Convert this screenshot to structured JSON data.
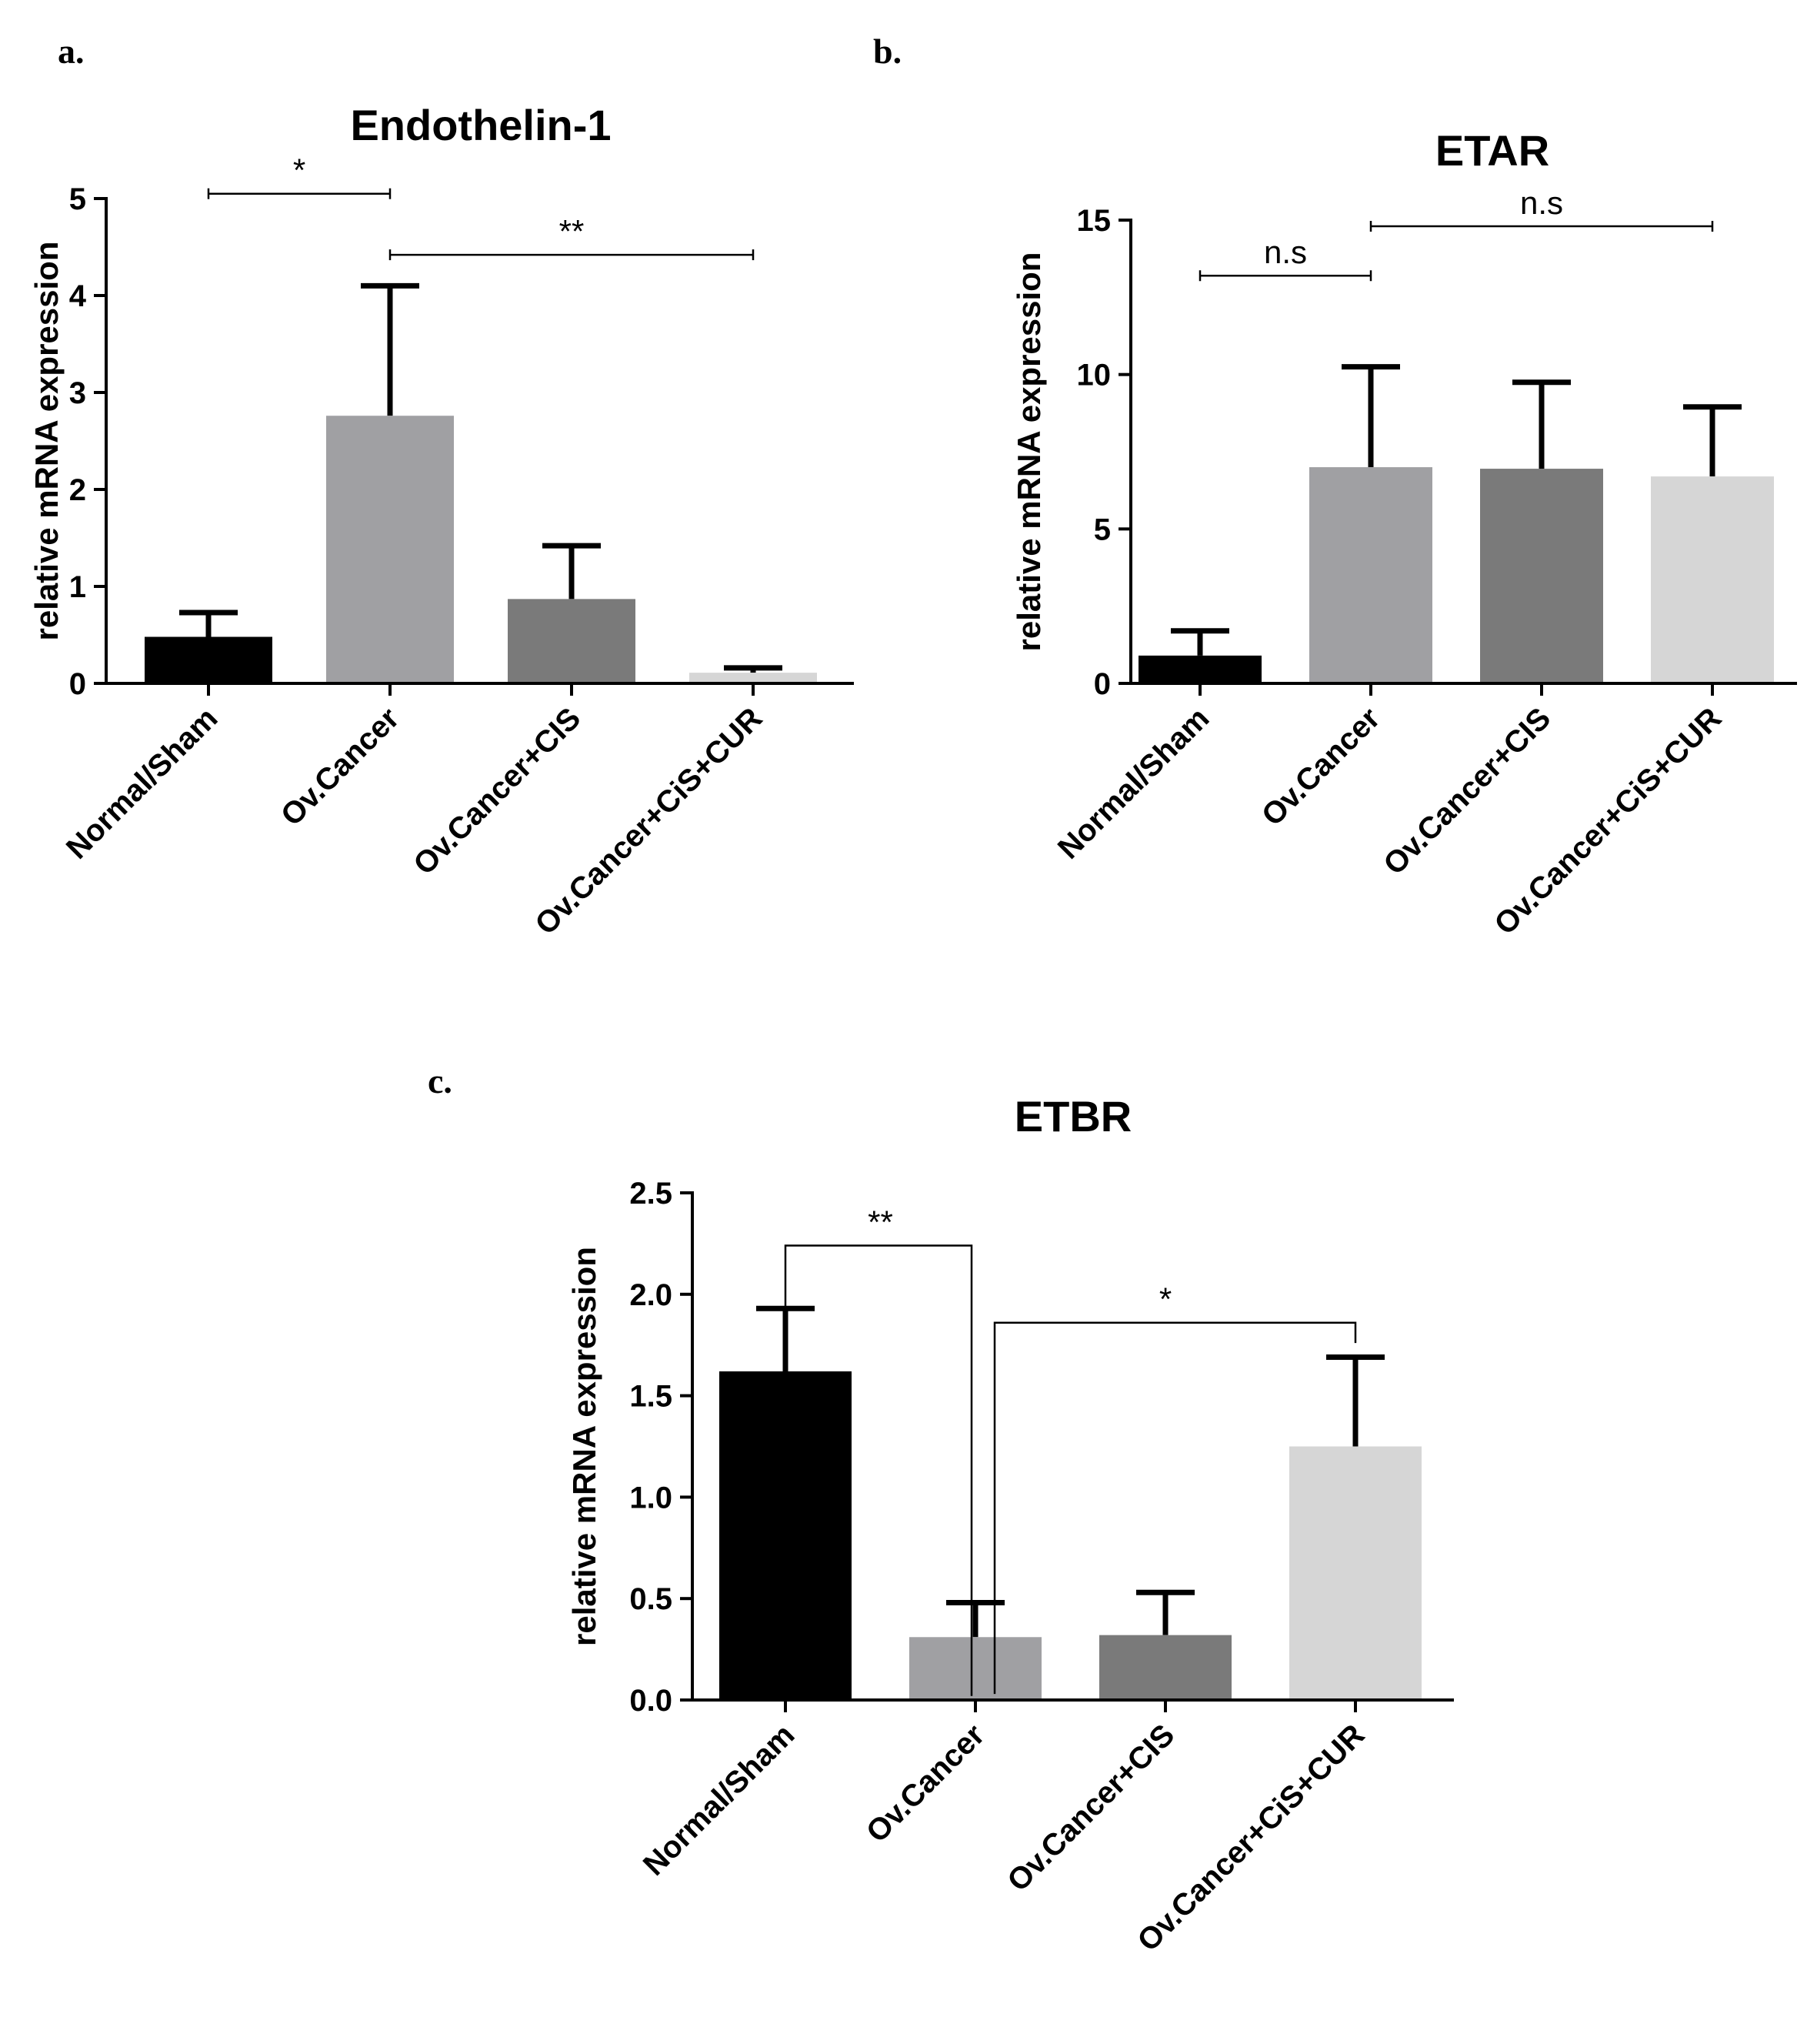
{
  "chart_data": [
    {
      "panel": "a.",
      "type": "bar",
      "title": "Endothelin-1",
      "xlabel": "",
      "ylabel": "relative mRNA expression",
      "categories": [
        "Normal/Sham",
        "Ov.Cancer",
        "Ov.Cancer+CIS",
        "Ov.Cancer+CiS+CUR"
      ],
      "values": [
        0.48,
        2.76,
        0.87,
        0.11
      ],
      "errors": [
        0.25,
        1.34,
        0.55,
        0.05
      ],
      "colors": [
        "#000000",
        "#a0a0a3",
        "#7a7a7a",
        "#d6d6d6"
      ],
      "ylim": [
        0,
        5
      ],
      "yticks": [
        "0",
        "1",
        "2",
        "3",
        "4",
        "5"
      ],
      "ytick_values": [
        0,
        1,
        2,
        3,
        4,
        5
      ],
      "significance": [
        {
          "from": 0,
          "to": 1,
          "label": "*",
          "style": "capped",
          "level": 5.05
        },
        {
          "from": 1,
          "to": 3,
          "label": "**",
          "style": "capped",
          "level": 4.42
        }
      ]
    },
    {
      "panel": "b.",
      "type": "bar",
      "title": "ETAR",
      "xlabel": "",
      "ylabel": "relative mRNA expression",
      "categories": [
        "Normal/Sham",
        "Ov.Cancer",
        "Ov.Cancer+CIS",
        "Ov.Cancer+CiS+CUR"
      ],
      "values": [
        0.9,
        7.0,
        6.95,
        6.7
      ],
      "errors": [
        0.8,
        3.25,
        2.8,
        2.25
      ],
      "colors": [
        "#000000",
        "#a0a0a3",
        "#7a7a7a",
        "#d6d6d6"
      ],
      "ylim": [
        0,
        15
      ],
      "yticks": [
        "0",
        "5",
        "10",
        "15"
      ],
      "ytick_values": [
        0,
        5,
        10,
        15
      ],
      "significance": [
        {
          "from": 0,
          "to": 1,
          "label": "n.s",
          "style": "capped",
          "level": 13.2
        },
        {
          "from": 1,
          "to": 3,
          "label": "n.s",
          "style": "capped",
          "level": 14.8
        }
      ]
    },
    {
      "panel": "c.",
      "type": "bar",
      "title": "ETBR",
      "xlabel": "",
      "ylabel": "relative mRNA expression",
      "categories": [
        "Normal/Sham",
        "Ov.Cancer",
        "Ov.Cancer+CIS",
        "Ov.Cancer+CiS+CUR"
      ],
      "values": [
        1.62,
        0.31,
        0.32,
        1.25
      ],
      "errors": [
        0.31,
        0.17,
        0.21,
        0.44
      ],
      "colors": [
        "#000000",
        "#a0a0a3",
        "#7a7a7a",
        "#d6d6d6"
      ],
      "ylim": [
        0,
        2.5
      ],
      "yticks": [
        "0.0",
        "0.5",
        "1.0",
        "1.5",
        "2.0",
        "2.5"
      ],
      "ytick_values": [
        0,
        0.5,
        1.0,
        1.5,
        2.0,
        2.5
      ],
      "significance": [
        {
          "from": 0,
          "to": 1,
          "label": "**",
          "style": "bracket",
          "level": 2.24,
          "drop_to": [
            1.93,
            0.02
          ]
        },
        {
          "from": 1,
          "to": 3,
          "label": "*",
          "style": "bracket",
          "level": 1.86,
          "drop_to": [
            0.03,
            1.76
          ]
        }
      ]
    }
  ]
}
